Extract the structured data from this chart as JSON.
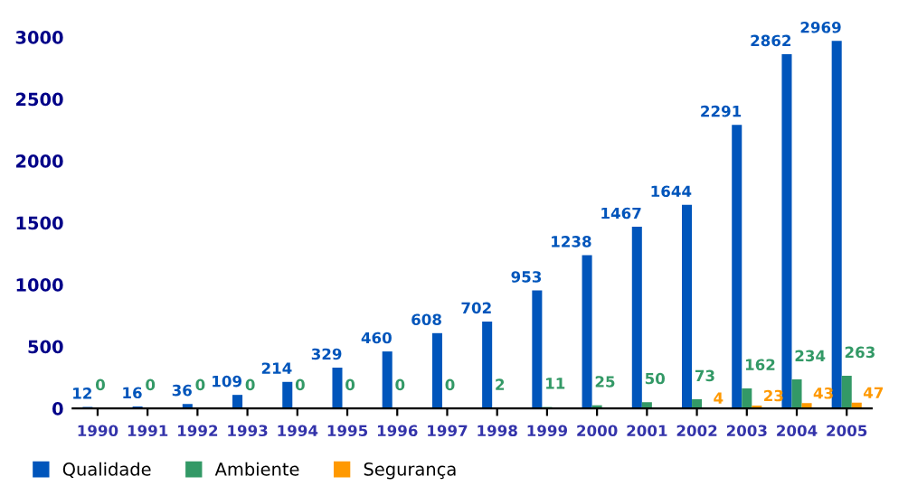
{
  "chart_data": {
    "type": "bar",
    "categories": [
      "1990",
      "1991",
      "1992",
      "1993",
      "1994",
      "1995",
      "1996",
      "1997",
      "1998",
      "1999",
      "2000",
      "2001",
      "2002",
      "2003",
      "2004",
      "2005"
    ],
    "series": [
      {
        "name": "Qualidade",
        "color": "#0055bb",
        "values": [
          12,
          16,
          36,
          109,
          214,
          329,
          460,
          608,
          702,
          953,
          1238,
          1467,
          1644,
          2291,
          2862,
          2969
        ],
        "value_labels": [
          "12",
          "16",
          "36",
          "109",
          "214",
          "329",
          "460",
          "608",
          "702",
          "953",
          "1238",
          "1467",
          "1644",
          "2291",
          "2862",
          "2969"
        ]
      },
      {
        "name": "Ambiente",
        "color": "#339966",
        "values": [
          0,
          0,
          0,
          0,
          0,
          0,
          0,
          0,
          2,
          11,
          25,
          50,
          73,
          162,
          234,
          263
        ],
        "value_labels": [
          "0",
          "0",
          "0",
          "0",
          "0",
          "0",
          "0",
          "0",
          "2",
          "11",
          "25",
          "50",
          "73",
          "162",
          "234",
          "263"
        ]
      },
      {
        "name": "Segurança",
        "color": "#ff9900",
        "values": [
          null,
          null,
          null,
          null,
          null,
          null,
          null,
          null,
          null,
          null,
          null,
          null,
          4,
          23,
          43,
          47
        ],
        "value_labels": [
          null,
          null,
          null,
          null,
          null,
          null,
          null,
          null,
          null,
          null,
          null,
          null,
          "4",
          "23",
          "43",
          "47"
        ]
      }
    ],
    "ylim": [
      0,
      3000
    ],
    "yticks": [
      0,
      500,
      1000,
      1500,
      2000,
      2500,
      3000
    ],
    "grid": false,
    "legend": "bottom left"
  }
}
